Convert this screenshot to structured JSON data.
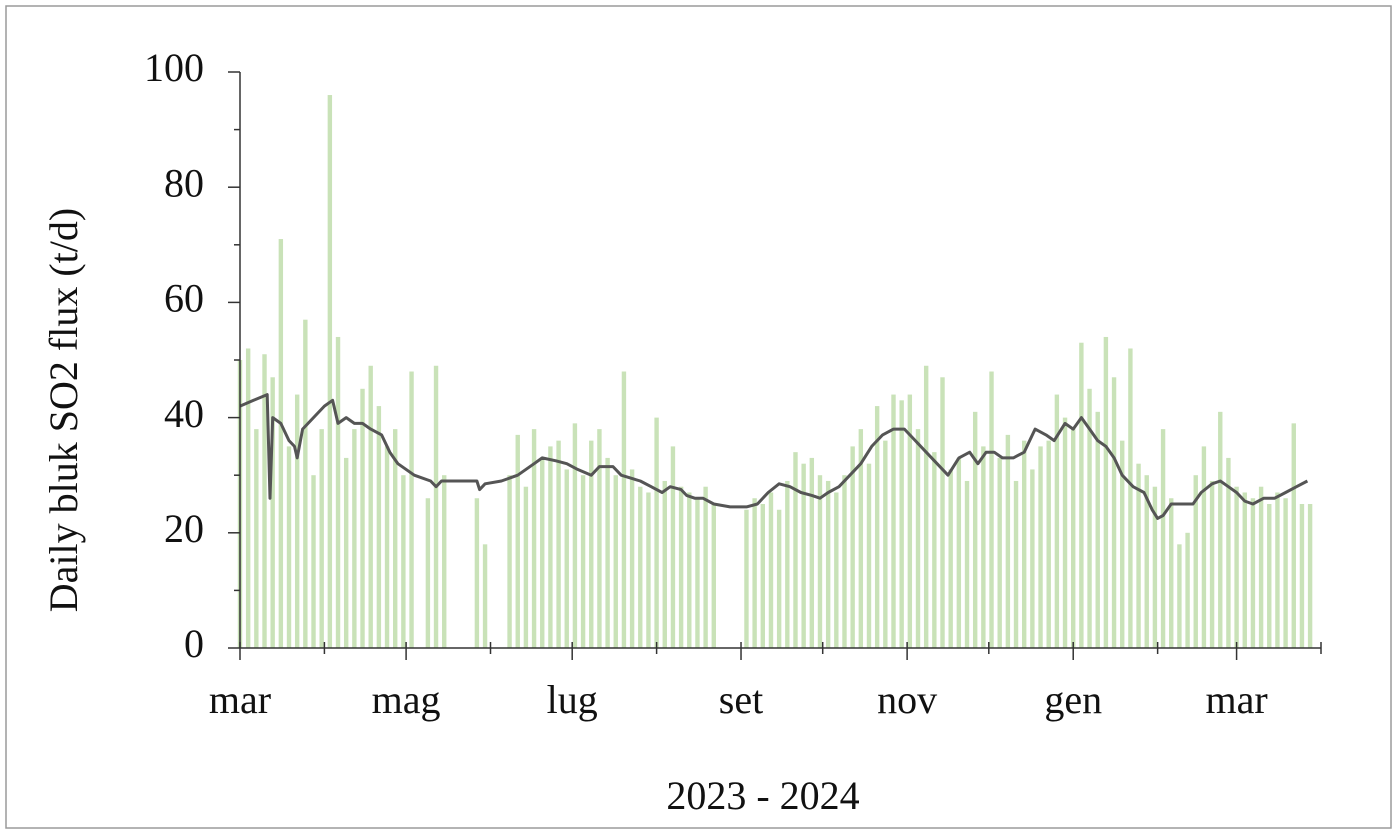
{
  "chart_data": {
    "type": "combo",
    "x_label": "2023 - 2024",
    "y_label": "Daily bluk  SO2 flux (t/d)",
    "xlim": [
      0,
      397
    ],
    "xticks": [
      {
        "value": 0,
        "label": "mar"
      },
      {
        "value": 61,
        "label": "mag"
      },
      {
        "value": 122,
        "label": "lug"
      },
      {
        "value": 184,
        "label": "set"
      },
      {
        "value": 245,
        "label": "nov"
      },
      {
        "value": 306,
        "label": "gen"
      },
      {
        "value": 366,
        "label": "mar"
      }
    ],
    "xminorticks": [
      31,
      92,
      153,
      214,
      275,
      337,
      397
    ],
    "ylim": [
      0,
      100
    ],
    "yticks": [
      0,
      20,
      40,
      60,
      80,
      100
    ],
    "yminorticks": [
      10,
      30,
      50,
      70,
      90
    ],
    "series": [
      {
        "type": "bar",
        "color": "#c6e0b4",
        "x": [
          0,
          3,
          6,
          9,
          12,
          15,
          18,
          21,
          24,
          27,
          30,
          33,
          36,
          39,
          42,
          45,
          48,
          51,
          54,
          57,
          60,
          63,
          66,
          69,
          72,
          75,
          78,
          81,
          84,
          87,
          90,
          93,
          96,
          99,
          102,
          105,
          108,
          111,
          114,
          117,
          120,
          123,
          126,
          129,
          132,
          135,
          138,
          141,
          144,
          147,
          150,
          153,
          156,
          159,
          162,
          165,
          168,
          171,
          174,
          177,
          180,
          183,
          186,
          189,
          192,
          195,
          198,
          201,
          204,
          207,
          210,
          213,
          216,
          219,
          222,
          225,
          228,
          231,
          234,
          237,
          240,
          243,
          246,
          249,
          252,
          255,
          258,
          261,
          264,
          267,
          270,
          273,
          276,
          279,
          282,
          285,
          288,
          291,
          294,
          297,
          300,
          303,
          306,
          309,
          312,
          315,
          318,
          321,
          324,
          327,
          330,
          333,
          336,
          339,
          342,
          345,
          348,
          351,
          354,
          357,
          360,
          363,
          366,
          369,
          372,
          375,
          378,
          381,
          384,
          387,
          390,
          393
        ],
        "values": [
          50,
          52,
          38,
          51,
          47,
          71,
          35,
          44,
          57,
          30,
          38,
          96,
          54,
          33,
          38,
          45,
          49,
          42,
          35,
          38,
          30,
          48,
          null,
          26,
          49,
          30,
          null,
          null,
          null,
          26,
          18,
          null,
          null,
          30,
          37,
          28,
          38,
          33,
          35,
          36,
          31,
          39,
          30,
          36,
          38,
          33,
          30,
          48,
          31,
          28,
          27,
          40,
          29,
          35,
          28,
          27,
          26,
          28,
          25,
          null,
          null,
          null,
          24,
          26,
          25,
          27,
          24,
          29,
          34,
          32,
          33,
          30,
          29,
          27,
          30,
          35,
          38,
          32,
          42,
          36,
          44,
          43,
          44,
          38,
          49,
          34,
          47,
          31,
          33,
          29,
          41,
          35,
          48,
          33,
          37,
          29,
          36,
          31,
          35,
          36,
          44,
          40,
          38,
          53,
          45,
          41,
          54,
          47,
          36,
          52,
          32,
          30,
          28,
          38,
          26,
          18,
          20,
          30,
          35,
          29,
          41,
          33,
          28,
          27,
          26,
          28,
          25,
          27,
          26,
          39,
          25,
          25
        ]
      },
      {
        "type": "line",
        "color": "#555555",
        "x": [
          0,
          5,
          10,
          11,
          12,
          15,
          18,
          20,
          21,
          23,
          27,
          31,
          34,
          36,
          39,
          42,
          45,
          48,
          52,
          55,
          58,
          64,
          70,
          72,
          74,
          82,
          87,
          88,
          90,
          96,
          102,
          108,
          111,
          116,
          120,
          124,
          129,
          132,
          137,
          140,
          147,
          151,
          155,
          158,
          162,
          164,
          167,
          170,
          174,
          180,
          186,
          190,
          194,
          198,
          202,
          206,
          210,
          213,
          216,
          220,
          224,
          228,
          232,
          236,
          240,
          244,
          248,
          252,
          256,
          260,
          264,
          268,
          271,
          274,
          277,
          280,
          284,
          288,
          292,
          296,
          299,
          303,
          306,
          309,
          312,
          315,
          318,
          321,
          324,
          328,
          332,
          335,
          337,
          339,
          342,
          346,
          350,
          353,
          357,
          360,
          363,
          366,
          369,
          372,
          376,
          380,
          384,
          388,
          392
        ],
        "values": [
          42,
          43,
          44,
          26,
          40,
          39,
          36,
          35,
          33,
          38,
          40,
          42,
          43,
          39,
          40,
          39,
          39,
          38,
          37,
          34,
          32,
          30,
          29,
          28,
          29,
          29,
          29,
          27.5,
          28.5,
          29,
          30,
          32,
          33,
          32.5,
          32,
          31,
          30,
          31.5,
          31.5,
          30,
          29,
          28,
          27,
          28,
          27.5,
          26.5,
          26,
          26,
          25,
          24.5,
          24.5,
          25,
          27,
          28.5,
          28,
          27,
          26.5,
          26,
          27,
          28,
          30,
          32,
          35,
          37,
          38,
          38,
          36,
          34,
          32,
          30,
          33,
          34,
          32,
          34,
          34,
          33,
          33,
          34,
          38,
          37,
          36,
          39,
          38,
          40,
          38,
          36,
          35,
          33,
          30,
          28,
          27,
          24,
          22.5,
          23,
          25,
          25,
          25,
          27,
          28.5,
          29,
          28,
          27,
          25.5,
          25,
          26,
          26,
          27,
          28,
          29
        ]
      }
    ]
  }
}
